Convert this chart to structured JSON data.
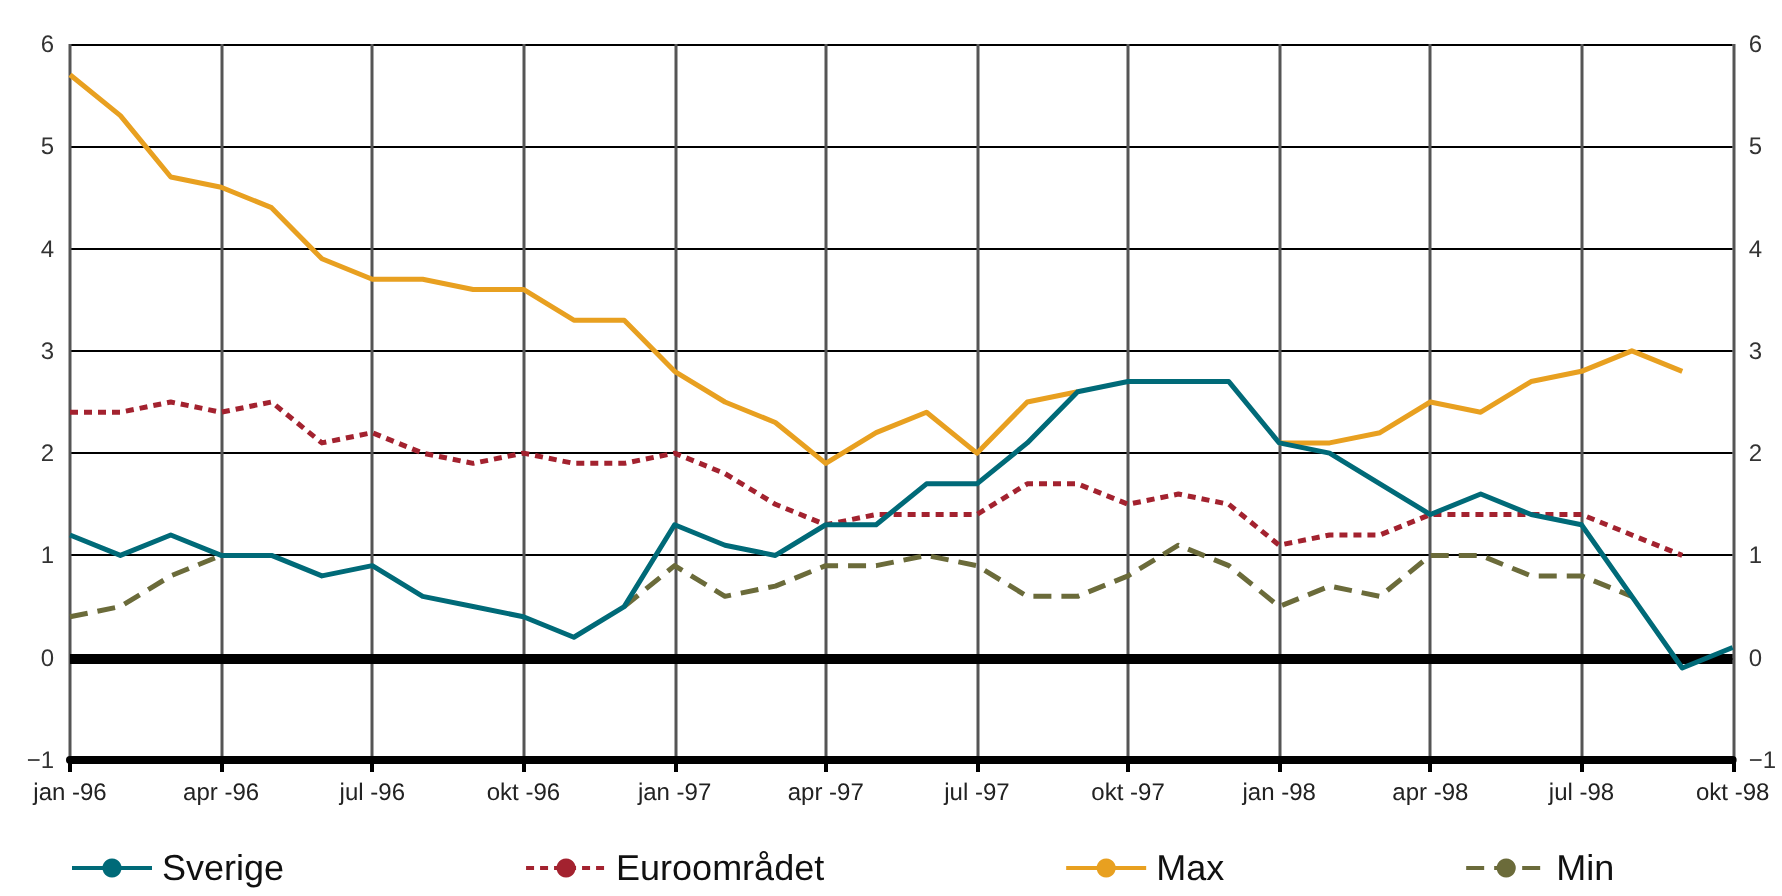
{
  "chart_data": {
    "type": "line",
    "categories": [
      "jan -96",
      null,
      null,
      "apr -96",
      null,
      null,
      "jul -96",
      null,
      null,
      "okt -96",
      null,
      null,
      "jan -97",
      null,
      null,
      "apr -97",
      null,
      null,
      "jul -97",
      null,
      null,
      "okt -97",
      null,
      null,
      "jan -98",
      null,
      null,
      "apr -98",
      null,
      null,
      "jul -98",
      null,
      null,
      "okt -98"
    ],
    "series": [
      {
        "name": "Sverige",
        "color": "#006a78",
        "line_style": "solid",
        "values": [
          1.2,
          1.0,
          1.2,
          1.0,
          1.0,
          0.8,
          0.9,
          0.6,
          0.5,
          0.4,
          0.2,
          0.5,
          1.3,
          1.1,
          1.0,
          1.3,
          1.3,
          1.7,
          1.7,
          2.1,
          2.6,
          2.7,
          2.7,
          2.7,
          2.1,
          2.0,
          1.7,
          1.4,
          1.6,
          1.4,
          1.3,
          0.6,
          -0.1,
          0.1
        ]
      },
      {
        "name": "Euroområdet",
        "color": "#a3222f",
        "line_style": "dotted",
        "values": [
          2.4,
          2.4,
          2.5,
          2.4,
          2.5,
          2.1,
          2.2,
          2.0,
          1.9,
          2.0,
          1.9,
          1.9,
          2.0,
          1.8,
          1.5,
          1.3,
          1.4,
          1.4,
          1.4,
          1.7,
          1.7,
          1.5,
          1.6,
          1.5,
          1.1,
          1.2,
          1.2,
          1.4,
          1.4,
          1.4,
          1.4,
          1.2,
          1.0,
          null
        ]
      },
      {
        "name": "Max",
        "color": "#e8a020",
        "line_style": "solid",
        "values": [
          5.7,
          5.3,
          4.7,
          4.6,
          4.4,
          3.9,
          3.7,
          3.7,
          3.6,
          3.6,
          3.3,
          3.3,
          2.8,
          2.5,
          2.3,
          1.9,
          2.2,
          2.4,
          2.0,
          2.5,
          2.6,
          null,
          null,
          null,
          2.1,
          2.1,
          2.2,
          2.5,
          2.4,
          2.7,
          2.8,
          3.0,
          2.8,
          null
        ]
      },
      {
        "name": "Min",
        "color": "#6b6b3a",
        "line_style": "dashed",
        "values": [
          0.4,
          0.5,
          0.8,
          1.0,
          null,
          null,
          null,
          null,
          null,
          null,
          null,
          0.5,
          0.9,
          0.6,
          0.7,
          0.9,
          0.9,
          1.0,
          0.9,
          0.6,
          0.6,
          0.8,
          1.1,
          0.9,
          0.5,
          0.7,
          0.6,
          1.0,
          1.0,
          0.8,
          0.8,
          0.6,
          null,
          null
        ]
      }
    ],
    "ylim": [
      -1,
      6
    ],
    "yticks": [
      -1,
      0,
      1,
      2,
      3,
      4,
      5,
      6
    ],
    "y2lim": [
      -1,
      6
    ],
    "y2ticks": [
      -1,
      0,
      1,
      2,
      3,
      4,
      5,
      6
    ],
    "ref_lines": [
      {
        "axis": "y",
        "value": 0,
        "color": "#000000"
      }
    ],
    "grid": true,
    "legend": "bottom",
    "marker": "none"
  }
}
